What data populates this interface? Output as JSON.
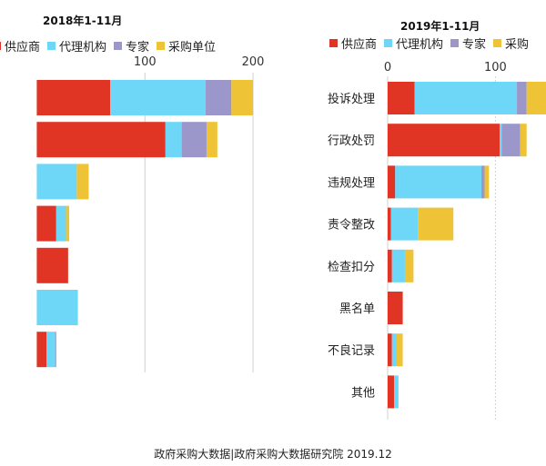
{
  "colors": {
    "供应商": "#e03424",
    "代理机构": "#6ed6f6",
    "专家": "#9b97cb",
    "采购单位": "#eec335",
    "grid": "#d0d0d0",
    "axis_line": "#bfbfbf"
  },
  "chart_data": [
    {
      "type": "bar",
      "orientation": "horizontal",
      "stacked": true,
      "title": "2018年1-11月",
      "legend_position": "top",
      "legend": [
        "供应商",
        "代理机构",
        "专家",
        "采购单位"
      ],
      "xlim": [
        -34,
        205
      ],
      "xticks": [
        100,
        200
      ],
      "grid": true,
      "categories": [
        "投诉处理",
        "行政处罚",
        "违规处理",
        "责令整改",
        "检查扣分",
        "黑名单",
        "不良记录",
        "其他"
      ],
      "series": [
        {
          "name": "供应商",
          "values": [
            68,
            119,
            0,
            18,
            29,
            0,
            9,
            0
          ]
        },
        {
          "name": "代理机构",
          "values": [
            88,
            15,
            37,
            9,
            0,
            38,
            8,
            0
          ]
        },
        {
          "name": "专家",
          "values": [
            24,
            23,
            0,
            0,
            0,
            0,
            1,
            0
          ]
        },
        {
          "name": "采购单位",
          "values": [
            20,
            10,
            11,
            3,
            0,
            0,
            0,
            0
          ]
        }
      ]
    },
    {
      "type": "bar",
      "orientation": "horizontal",
      "stacked": true,
      "title": "2019年1-11月",
      "legend_position": "top",
      "legend": [
        "供应商",
        "代理机构",
        "专家",
        "采购"
      ],
      "xlim": [
        0,
        147
      ],
      "xticks": [
        0,
        100
      ],
      "grid": true,
      "categories": [
        "投诉处理",
        "行政处罚",
        "违规处理",
        "责令整改",
        "检查扣分",
        "黑名单",
        "不良记录",
        "其他"
      ],
      "series": [
        {
          "name": "供应商",
          "values": [
            25,
            104,
            7,
            3,
            4,
            14,
            4,
            6
          ]
        },
        {
          "name": "代理机构",
          "values": [
            95,
            2,
            80,
            25,
            12,
            0,
            4,
            4
          ]
        },
        {
          "name": "专家",
          "values": [
            9,
            17,
            3,
            0,
            0,
            0,
            0,
            0
          ]
        },
        {
          "name": "采购单位",
          "values": [
            20,
            6,
            4,
            33,
            8,
            0,
            6,
            0
          ]
        }
      ]
    }
  ],
  "footer": "政府采购大数据|政府采购大数据研究院 2019.12"
}
